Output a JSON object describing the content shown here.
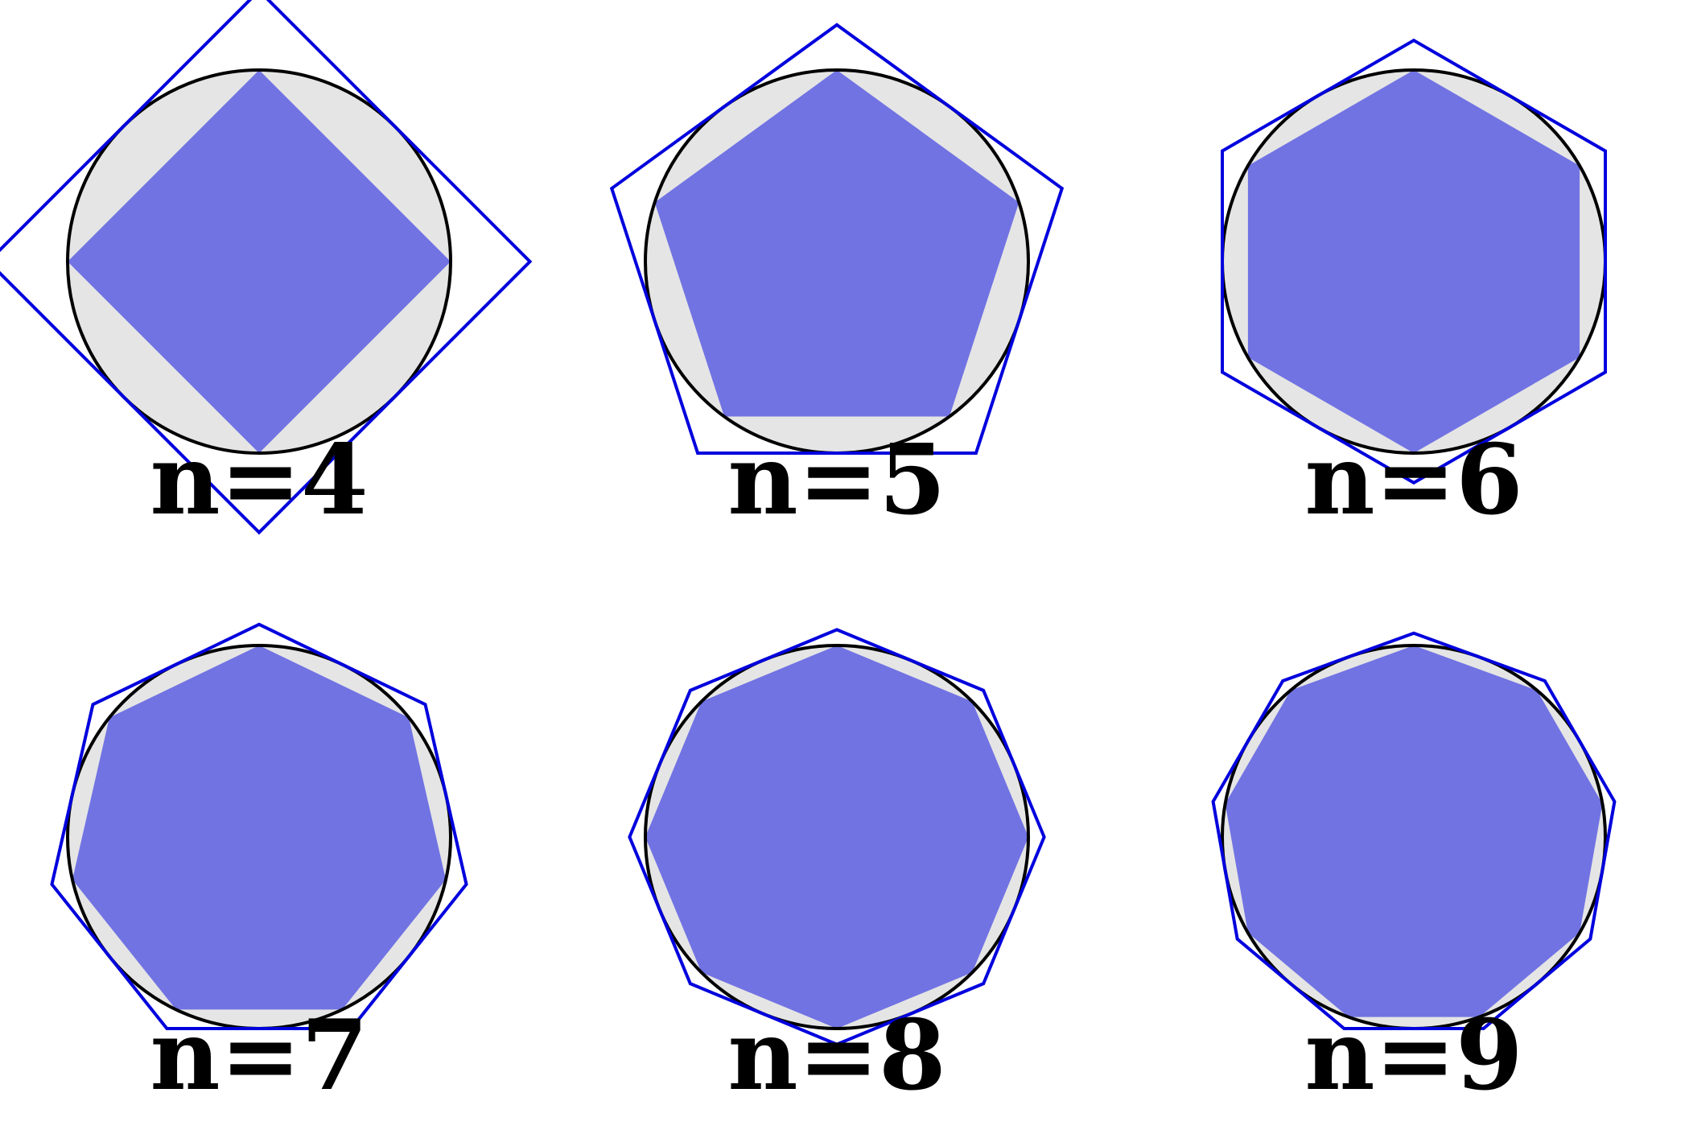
{
  "colors": {
    "background": "#ffffff",
    "disc_fill": "#e5e5e5",
    "circle_stroke": "#000000",
    "inscribed_fill": "#7173e3",
    "circumscribed_stroke": "#0000dd"
  },
  "panels": [
    {
      "n": 4,
      "label": "n=4"
    },
    {
      "n": 5,
      "label": "n=5"
    },
    {
      "n": 6,
      "label": "n=6"
    },
    {
      "n": 7,
      "label": "n=7"
    },
    {
      "n": 8,
      "label": "n=8"
    },
    {
      "n": 9,
      "label": "n=9"
    }
  ]
}
